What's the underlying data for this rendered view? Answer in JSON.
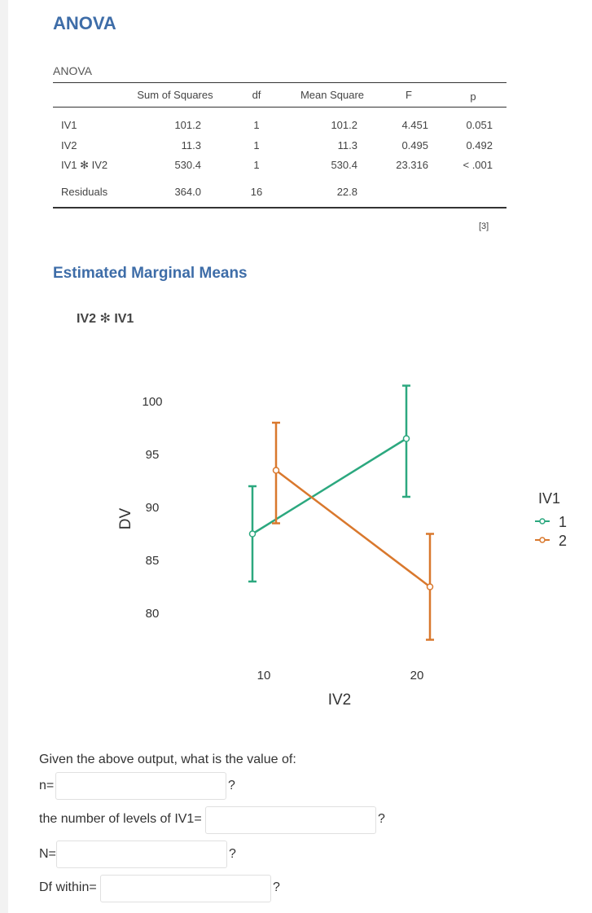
{
  "page": {
    "heading": "ANOVA",
    "table_caption": "ANOVA",
    "footnote": "[3]"
  },
  "anova": {
    "headers": [
      "",
      "Sum of Squares",
      "df",
      "Mean Square",
      "F",
      "p"
    ],
    "rows": [
      [
        "IV1",
        "101.2",
        "1",
        "101.2",
        "4.451",
        "0.051"
      ],
      [
        "IV2",
        "11.3",
        "1",
        "11.3",
        "0.495",
        "0.492"
      ],
      [
        "IV1 ✻ IV2",
        "530.4",
        "1",
        "530.4",
        "23.316",
        "< .001"
      ],
      [
        "Residuals",
        "364.0",
        "16",
        "22.8",
        "",
        ""
      ]
    ]
  },
  "emm": {
    "heading": "Estimated Marginal Means",
    "plot_title": "IV2 ✻ IV1"
  },
  "chart_data": {
    "type": "line",
    "x": [
      10,
      20
    ],
    "x_tick_labels": [
      "10",
      "20"
    ],
    "y_tick_labels": [
      "100",
      "95",
      "90",
      "85",
      "80"
    ],
    "xlabel": "IV2",
    "ylabel": "DV",
    "ylim": [
      75,
      100
    ],
    "legend_title": "IV1",
    "legend_position": "right",
    "series": [
      {
        "name": "1",
        "color": "#2ca87f",
        "values": [
          87.5,
          96.5
        ],
        "ci_low": [
          83,
          91
        ],
        "ci_high": [
          92,
          101.5
        ]
      },
      {
        "name": "2",
        "color": "#d9782d",
        "values": [
          93.5,
          82.5
        ],
        "ci_low": [
          88.5,
          77.5
        ],
        "ci_high": [
          98,
          87.5
        ]
      }
    ]
  },
  "questions": {
    "prompt": "Given the above output, what is the value of:",
    "items": [
      {
        "label": "n=",
        "value": "",
        "suffix": "?"
      },
      {
        "label": "the number of levels of IV1=",
        "value": "",
        "suffix": "?"
      },
      {
        "label": "N=",
        "value": "",
        "suffix": "?"
      },
      {
        "label": "Df within=",
        "value": "",
        "suffix": "?"
      }
    ]
  }
}
